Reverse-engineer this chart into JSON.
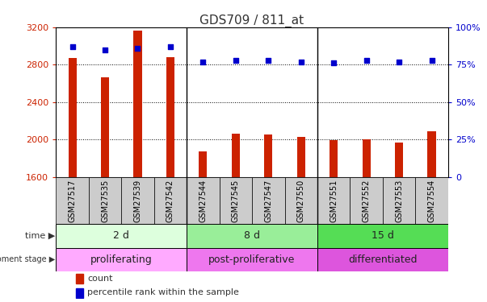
{
  "title": "GDS709 / 811_at",
  "samples": [
    "GSM27517",
    "GSM27535",
    "GSM27539",
    "GSM27542",
    "GSM27544",
    "GSM27545",
    "GSM27547",
    "GSM27550",
    "GSM27551",
    "GSM27552",
    "GSM27553",
    "GSM27554"
  ],
  "counts": [
    2870,
    2660,
    3160,
    2880,
    1870,
    2060,
    2050,
    2030,
    1990,
    2005,
    1970,
    2090
  ],
  "percentiles": [
    87,
    85,
    86,
    87,
    77,
    78,
    78,
    77,
    76,
    78,
    77,
    78
  ],
  "ymin": 1600,
  "ymax": 3200,
  "yticks": [
    1600,
    2000,
    2400,
    2800,
    3200
  ],
  "y2min": 0,
  "y2max": 100,
  "y2ticks": [
    0,
    25,
    50,
    75,
    100
  ],
  "bar_color": "#cc2200",
  "dot_color": "#0000cc",
  "bar_width": 0.25,
  "time_groups": [
    {
      "label": "2 d",
      "start": 0,
      "end": 3,
      "color": "#ccffcc"
    },
    {
      "label": "8 d",
      "start": 4,
      "end": 7,
      "color": "#88ee88"
    },
    {
      "label": "15 d",
      "start": 8,
      "end": 11,
      "color": "#44dd44"
    }
  ],
  "stage_groups": [
    {
      "label": "proliferating",
      "start": 0,
      "end": 3,
      "color": "#ff88ff"
    },
    {
      "label": "post-proliferative",
      "start": 4,
      "end": 7,
      "color": "#ee66ee"
    },
    {
      "label": "differentiated",
      "start": 8,
      "end": 11,
      "color": "#dd44dd"
    }
  ],
  "legend_count_color": "#cc2200",
  "legend_dot_color": "#0000cc",
  "grid_color": "#000000",
  "tick_label_color_left": "#cc2200",
  "tick_label_color_right": "#0000cc",
  "bg_color": "#ffffff",
  "plot_bg_color": "#ffffff",
  "xtick_bg": "#cccccc",
  "separator_color": "#000000"
}
